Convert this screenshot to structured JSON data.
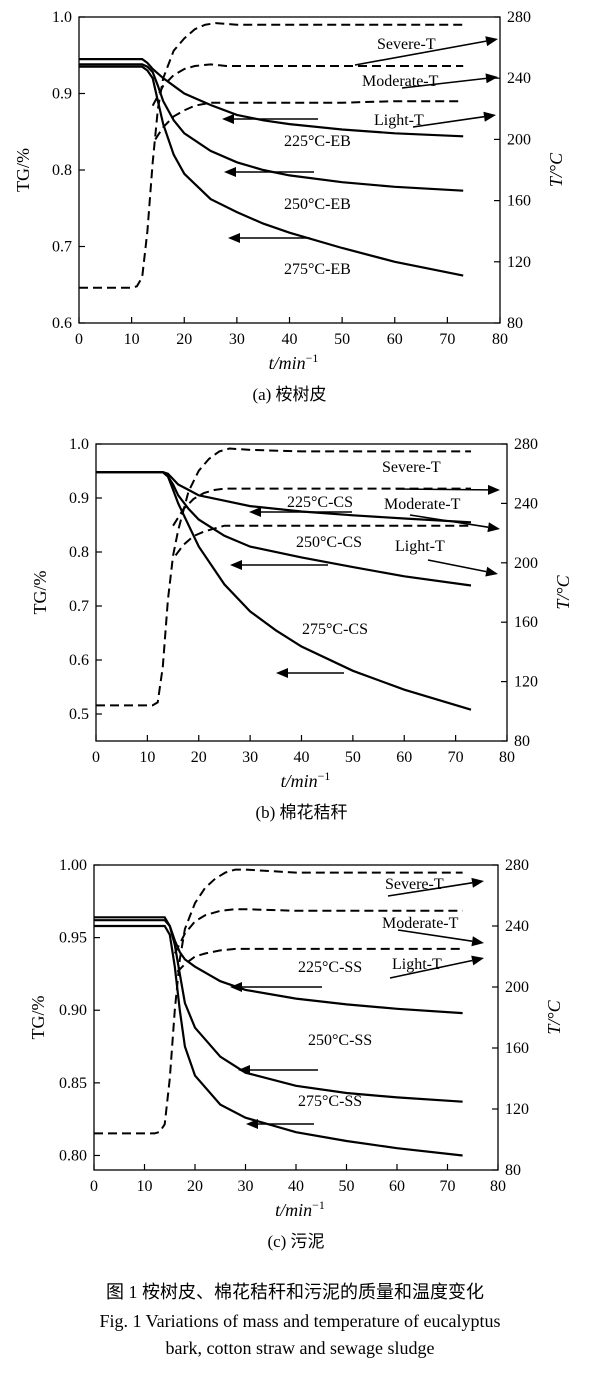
{
  "figure_caption_cn": "图 1 桉树皮、棉花秸秆和污泥的质量和温度变化",
  "figure_caption_en_line1": "Fig. 1 Variations of mass and temperature of eucalyptus",
  "figure_caption_en_line2": "bark, cotton straw and sewage sludge",
  "chart_data": [
    {
      "type": "line",
      "subcaption": "(a) 桉树皮",
      "xlabel": "t/min",
      "xlabel_sup": "−1",
      "ylabel": "TG/%",
      "y2label": "T/°C",
      "xlim": [
        0,
        80
      ],
      "ylim": [
        0.6,
        1.0
      ],
      "y2lim": [
        80,
        280
      ],
      "xticks": [
        "0",
        "10",
        "20",
        "30",
        "40",
        "50",
        "60",
        "70",
        "80"
      ],
      "yticks": [
        "0.6",
        "0.7",
        "0.8",
        "0.9",
        "1.0"
      ],
      "y2ticks": [
        "80",
        "120",
        "160",
        "200",
        "240",
        "280"
      ],
      "tg_series": [
        {
          "name": "225°C-EB",
          "x": [
            0,
            12,
            13,
            14,
            16,
            18,
            20,
            25,
            30,
            35,
            40,
            50,
            60,
            73
          ],
          "y": [
            0.945,
            0.945,
            0.94,
            0.932,
            0.92,
            0.91,
            0.9,
            0.885,
            0.872,
            0.865,
            0.86,
            0.853,
            0.848,
            0.844
          ]
        },
        {
          "name": "250°C-EB",
          "x": [
            0,
            12,
            13,
            14,
            15,
            16,
            18,
            20,
            25,
            30,
            35,
            40,
            50,
            60,
            73
          ],
          "y": [
            0.938,
            0.938,
            0.935,
            0.928,
            0.91,
            0.89,
            0.865,
            0.848,
            0.825,
            0.81,
            0.8,
            0.793,
            0.784,
            0.778,
            0.773
          ]
        },
        {
          "name": "275°C-EB",
          "x": [
            0,
            12,
            13,
            14,
            15,
            16,
            18,
            20,
            25,
            30,
            35,
            40,
            50,
            60,
            73
          ],
          "y": [
            0.935,
            0.935,
            0.93,
            0.92,
            0.89,
            0.86,
            0.82,
            0.795,
            0.762,
            0.745,
            0.73,
            0.718,
            0.698,
            0.68,
            0.662
          ]
        }
      ],
      "temp_series": [
        {
          "name": "Severe-T",
          "x": [
            0,
            8,
            10,
            11,
            12,
            13,
            14,
            15,
            16,
            18,
            20,
            22,
            24,
            26,
            30,
            40,
            50,
            60,
            73
          ],
          "y": [
            103,
            103,
            103,
            104,
            110,
            140,
            185,
            220,
            240,
            258,
            266,
            272,
            275,
            276,
            275,
            275,
            275,
            275,
            275
          ]
        },
        {
          "name": "Moderate-T",
          "x": [
            14,
            16,
            18,
            20,
            22,
            25,
            28,
            30,
            40,
            50,
            60,
            73
          ],
          "y": [
            222,
            235,
            242,
            246,
            248,
            249,
            248,
            248,
            248,
            248,
            248,
            248
          ]
        },
        {
          "name": "Light-T",
          "x": [
            14.5,
            16,
            18,
            20,
            22,
            25,
            30,
            40,
            50,
            60,
            73
          ],
          "y": [
            200,
            208,
            215,
            219,
            222,
            224,
            224,
            224,
            224,
            225,
            225
          ]
        }
      ],
      "labels": [
        {
          "text": "Severe-T"
        },
        {
          "text": "Moderate-T"
        },
        {
          "text": "Light-T"
        },
        {
          "text": "225°C-EB"
        },
        {
          "text": "250°C-EB"
        },
        {
          "text": "275°C-EB"
        }
      ]
    },
    {
      "type": "line",
      "subcaption": "(b) 棉花秸秆",
      "xlabel": "t/min",
      "xlabel_sup": "−1",
      "ylabel": "TG/%",
      "y2label": "T/°C",
      "xlim": [
        0,
        80
      ],
      "ylim": [
        0.45,
        1.0
      ],
      "y2lim": [
        80,
        280
      ],
      "xticks": [
        "0",
        "10",
        "20",
        "30",
        "40",
        "50",
        "60",
        "70",
        "80"
      ],
      "yticks": [
        "0.5",
        "0.6",
        "0.7",
        "0.8",
        "0.9",
        "1.0"
      ],
      "y2ticks": [
        "80",
        "120",
        "160",
        "200",
        "240",
        "280"
      ],
      "tg_series": [
        {
          "name": "225°C-CS",
          "x": [
            0,
            13,
            14,
            15,
            16,
            18,
            20,
            25,
            30,
            40,
            50,
            60,
            73
          ],
          "y": [
            0.948,
            0.948,
            0.945,
            0.935,
            0.925,
            0.915,
            0.905,
            0.895,
            0.885,
            0.875,
            0.868,
            0.862,
            0.855
          ]
        },
        {
          "name": "250°C-CS",
          "x": [
            0,
            13,
            14,
            15,
            16,
            18,
            20,
            25,
            30,
            40,
            50,
            60,
            73
          ],
          "y": [
            0.948,
            0.948,
            0.94,
            0.925,
            0.905,
            0.88,
            0.86,
            0.83,
            0.81,
            0.79,
            0.772,
            0.755,
            0.738
          ]
        },
        {
          "name": "275°C-CS",
          "x": [
            0,
            13,
            14,
            15,
            16,
            18,
            20,
            25,
            30,
            35,
            40,
            50,
            60,
            73
          ],
          "y": [
            0.948,
            0.948,
            0.94,
            0.915,
            0.89,
            0.85,
            0.81,
            0.74,
            0.69,
            0.655,
            0.625,
            0.58,
            0.545,
            0.508
          ]
        }
      ],
      "temp_series": [
        {
          "name": "Severe-T",
          "x": [
            0,
            8,
            10,
            11,
            12,
            13,
            14,
            15,
            16,
            18,
            20,
            22,
            24,
            26,
            30,
            40,
            50,
            60,
            73
          ],
          "y": [
            104,
            104,
            104,
            104,
            106,
            130,
            175,
            205,
            222,
            248,
            262,
            270,
            275,
            277,
            276,
            275,
            275,
            275,
            275
          ]
        },
        {
          "name": "Moderate-T",
          "x": [
            15,
            17,
            19,
            21,
            23,
            25,
            28,
            30,
            40,
            50,
            60,
            73
          ],
          "y": [
            225,
            236,
            243,
            247,
            249,
            250,
            250,
            250,
            250,
            250,
            250,
            250
          ]
        },
        {
          "name": "Light-T",
          "x": [
            15.5,
            17,
            19,
            21,
            23,
            25,
            30,
            40,
            50,
            60,
            73
          ],
          "y": [
            205,
            212,
            218,
            221,
            223,
            225,
            225,
            225,
            225,
            225,
            225
          ]
        }
      ],
      "labels": [
        {
          "text": "Severe-T"
        },
        {
          "text": "Moderate-T"
        },
        {
          "text": "Light-T"
        },
        {
          "text": "225°C-CS"
        },
        {
          "text": "250°C-CS"
        },
        {
          "text": "275°C-CS"
        }
      ]
    },
    {
      "type": "line",
      "subcaption": "(c) 污泥",
      "xlabel": "t/min",
      "xlabel_sup": "−1",
      "ylabel": "TG/%",
      "y2label": "T/°C",
      "xlim": [
        0,
        80
      ],
      "ylim": [
        0.79,
        1.0
      ],
      "y2lim": [
        80,
        280
      ],
      "xticks": [
        "0",
        "10",
        "20",
        "30",
        "40",
        "50",
        "60",
        "70",
        "80"
      ],
      "yticks": [
        "0.80",
        "0.85",
        "0.90",
        "0.95",
        "1.00"
      ],
      "y2ticks": [
        "80",
        "120",
        "160",
        "200",
        "240",
        "280"
      ],
      "tg_series": [
        {
          "name": "225°C-SS",
          "x": [
            0,
            14,
            15,
            16,
            17,
            18,
            20,
            25,
            30,
            40,
            50,
            60,
            73
          ],
          "y": [
            0.962,
            0.962,
            0.958,
            0.948,
            0.94,
            0.935,
            0.93,
            0.92,
            0.914,
            0.908,
            0.904,
            0.901,
            0.898
          ]
        },
        {
          "name": "250°C-SS",
          "x": [
            0,
            14,
            15,
            16,
            17,
            18,
            20,
            25,
            30,
            40,
            50,
            60,
            73
          ],
          "y": [
            0.964,
            0.964,
            0.958,
            0.945,
            0.925,
            0.905,
            0.888,
            0.868,
            0.857,
            0.848,
            0.843,
            0.84,
            0.837
          ]
        },
        {
          "name": "275°C-SS",
          "x": [
            0,
            14,
            15,
            16,
            17,
            18,
            20,
            25,
            30,
            40,
            50,
            60,
            73
          ],
          "y": [
            0.958,
            0.958,
            0.952,
            0.93,
            0.9,
            0.875,
            0.855,
            0.835,
            0.826,
            0.816,
            0.81,
            0.805,
            0.8
          ]
        }
      ],
      "temp_series": [
        {
          "name": "Severe-T",
          "x": [
            0,
            8,
            11,
            12,
            13,
            14,
            15,
            16,
            17,
            18,
            20,
            22,
            24,
            26,
            28,
            30,
            40,
            50,
            60,
            73
          ],
          "y": [
            104,
            104,
            104,
            104,
            105,
            110,
            140,
            185,
            218,
            238,
            255,
            265,
            271,
            275,
            277,
            277,
            275,
            275,
            275,
            275
          ]
        },
        {
          "name": "Moderate-T",
          "x": [
            16,
            18,
            20,
            22,
            25,
            28,
            30,
            40,
            50,
            60,
            73
          ],
          "y": [
            222,
            235,
            243,
            247,
            250,
            251,
            251,
            250,
            250,
            250,
            250
          ]
        },
        {
          "name": "Light-T",
          "x": [
            16.5,
            18,
            20,
            22,
            25,
            28,
            30,
            40,
            50,
            60,
            73
          ],
          "y": [
            210,
            215,
            220,
            222,
            224,
            225,
            225,
            225,
            225,
            225,
            225
          ]
        }
      ],
      "labels": [
        {
          "text": "Severe-T"
        },
        {
          "text": "Moderate-T"
        },
        {
          "text": "Light-T"
        },
        {
          "text": "225°C-SS"
        },
        {
          "text": "250°C-SS"
        },
        {
          "text": "275°C-SS"
        }
      ]
    }
  ]
}
